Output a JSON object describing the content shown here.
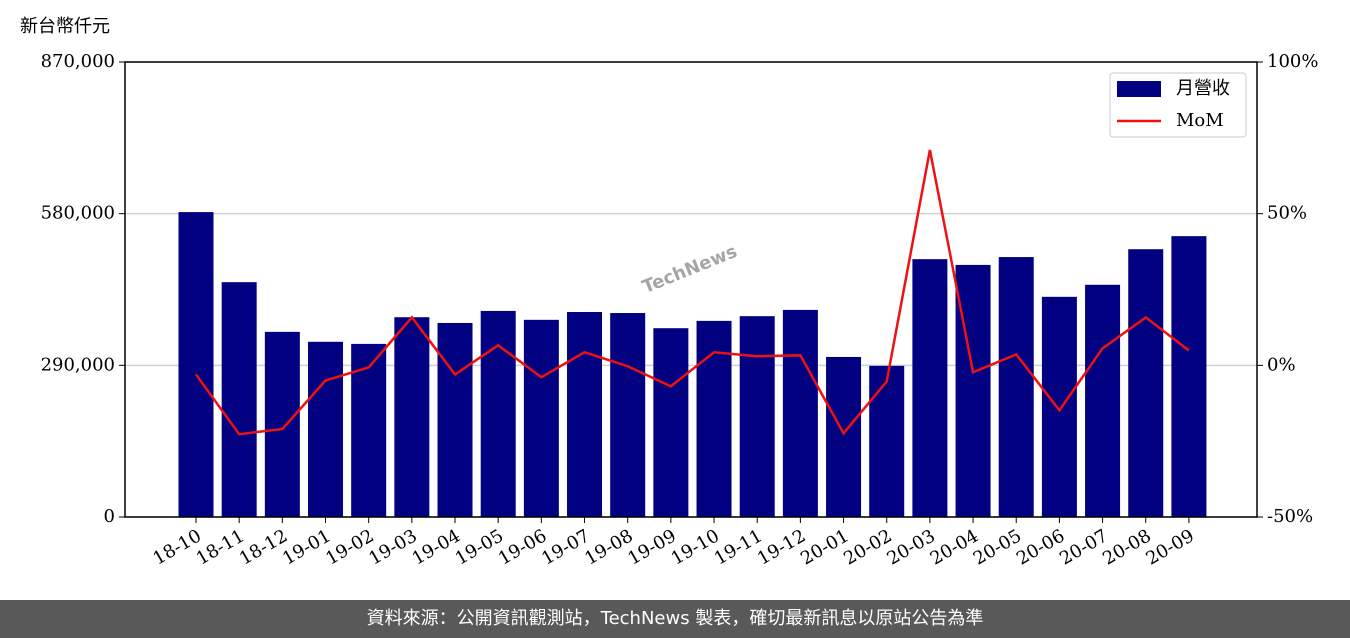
{
  "chart_data": {
    "type": "bar",
    "y_axis_label": "新台幣仟元",
    "watermark": "TechNews",
    "footer": "資料來源：公開資訊觀測站，TechNews 製表，確切最新訊息以原站公告為準",
    "categories": [
      "18-10",
      "18-11",
      "18-12",
      "19-01",
      "19-02",
      "19-03",
      "19-04",
      "19-05",
      "19-06",
      "19-07",
      "19-08",
      "19-09",
      "19-10",
      "19-11",
      "19-12",
      "20-01",
      "20-02",
      "20-03",
      "20-04",
      "20-05",
      "20-06",
      "20-07",
      "20-08",
      "20-09"
    ],
    "series": [
      {
        "name": "月營收",
        "type": "bar",
        "color": "#000080",
        "values": [
          583000,
          449000,
          354000,
          335000,
          331000,
          382000,
          371000,
          394000,
          377000,
          392000,
          390000,
          361000,
          375000,
          384000,
          396000,
          306000,
          289000,
          493000,
          482000,
          497000,
          421000,
          444000,
          512000,
          537000
        ]
      },
      {
        "name": "MoM",
        "type": "line",
        "color": "#ee1111",
        "axis": "y2",
        "values": [
          -3,
          -22.7,
          -21,
          -5,
          -0.7,
          15.8,
          -3,
          6.6,
          -3.9,
          4.3,
          -0.3,
          -6.9,
          4.3,
          3,
          3.3,
          -22.4,
          -5.3,
          71,
          -2.3,
          3.6,
          -14.8,
          5.6,
          15.8,
          4.9
        ]
      }
    ],
    "ylim": [
      0,
      870000
    ],
    "yticks": [
      0,
      {
        "value": 290000,
        "label": "290,000"
      },
      {
        "value": 580000,
        "label": "580,000"
      },
      {
        "value": 870000,
        "label": "870,000"
      }
    ],
    "y2lim": [
      -50,
      100
    ],
    "y2ticks": [
      {
        "value": -50,
        "label": "-50%"
      },
      {
        "value": 0,
        "label": "0%"
      },
      {
        "value": 50,
        "label": "50%"
      },
      {
        "value": 100,
        "label": "100%"
      }
    ],
    "grid": true,
    "legend": "upper-right"
  }
}
